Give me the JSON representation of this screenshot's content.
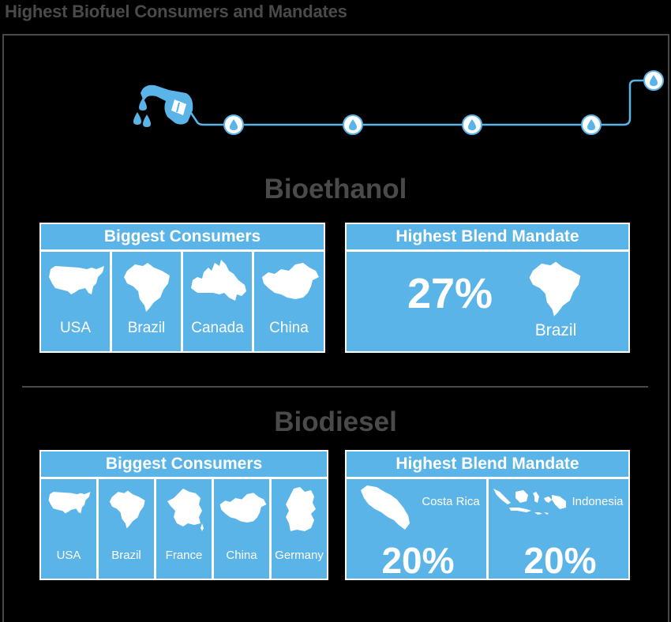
{
  "page_title": "Highest Biofuel Consumers and Mandates",
  "colors": {
    "accent": "#5ab4e8",
    "text_gray": "#4a4a4a",
    "background": "#000000"
  },
  "bioethanol": {
    "title": "Bioethanol",
    "consumers_heading": "Biggest Consumers",
    "consumers": [
      "USA",
      "Brazil",
      "Canada",
      "China"
    ],
    "mandate_heading": "Highest Blend Mandate",
    "mandate": {
      "percent": "27%",
      "country": "Brazil"
    }
  },
  "biodiesel": {
    "title": "Biodiesel",
    "consumers_heading": "Biggest Consumers",
    "consumers": [
      "USA",
      "Brazil",
      "France",
      "China",
      "Germany"
    ],
    "mandate_heading": "Highest Blend Mandate",
    "mandates": [
      {
        "country": "Costa Rica",
        "percent": "20%"
      },
      {
        "country": "Indonesia",
        "percent": "20%"
      }
    ]
  },
  "icons": [
    "fuel-nozzle-icon",
    "water-drop-icon"
  ]
}
